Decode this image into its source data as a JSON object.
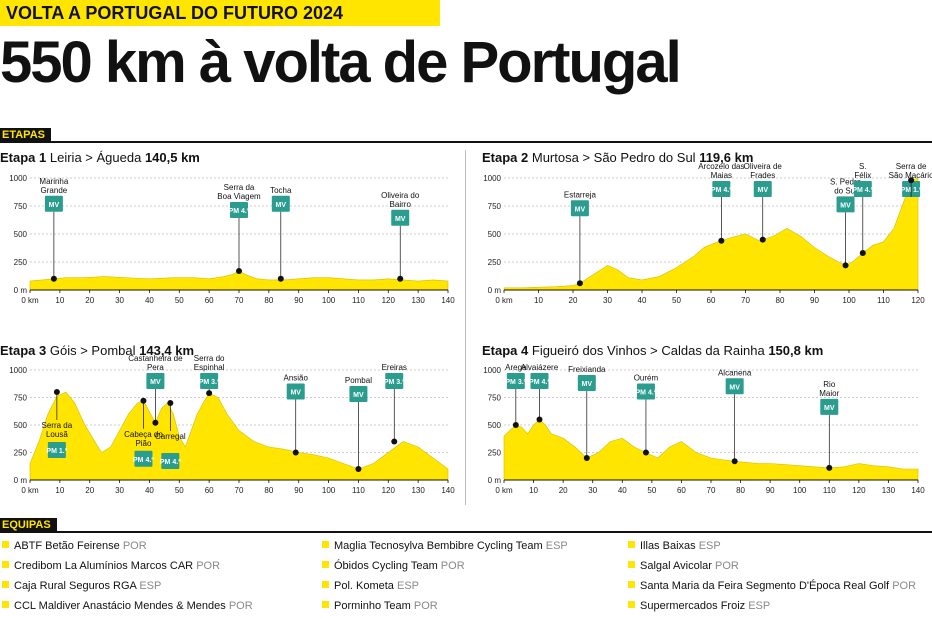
{
  "header": {
    "kicker": "VOLTA A PORTUGAL DO FUTURO 2024",
    "headline": "550 km à volta de Portugal"
  },
  "sections": {
    "stages_label": "ETAPAS",
    "teams_label": "EQUIPAS"
  },
  "chart_data": [
    {
      "type": "area",
      "title_prefix": "Etapa 1",
      "route": "Leiria > Águeda",
      "distance": "140,5 km",
      "xlim": [
        0,
        140
      ],
      "ylim": [
        0,
        1000
      ],
      "xticks": [
        0,
        10,
        20,
        30,
        40,
        50,
        60,
        70,
        80,
        90,
        100,
        110,
        120,
        130,
        140
      ],
      "xtick_labels": [
        "0 km",
        "10",
        "20",
        "30",
        "40",
        "50",
        "60",
        "70",
        "80",
        "90",
        "100",
        "110",
        "120",
        "130",
        "140"
      ],
      "yticks": [
        0,
        250,
        500,
        750,
        1000
      ],
      "ytick_labels": [
        "0 m",
        "250",
        "500",
        "750",
        "1000"
      ],
      "profile": {
        "x": [
          0,
          4,
          8,
          12,
          18,
          25,
          32,
          40,
          48,
          55,
          60,
          65,
          68,
          70,
          72,
          76,
          80,
          85,
          90,
          95,
          100,
          105,
          110,
          115,
          120,
          125,
          130,
          135,
          140
        ],
        "y": [
          80,
          90,
          100,
          110,
          110,
          120,
          110,
          100,
          110,
          110,
          100,
          120,
          140,
          170,
          140,
          100,
          90,
          90,
          100,
          110,
          110,
          100,
          90,
          90,
          100,
          90,
          80,
          90,
          80
        ]
      },
      "markers": [
        {
          "label": "Marinha Grande",
          "badge": "MV",
          "x": 8,
          "y": 100,
          "label_above": true
        },
        {
          "label": "Serra da Boa Viagem",
          "badge": "PM 4.ª",
          "x": 70,
          "y": 170,
          "label_above": true
        },
        {
          "label": "Tocha",
          "badge": "MV",
          "x": 84,
          "y": 100,
          "label_above": true
        },
        {
          "label": "Oliveira do Bairro",
          "badge": "MV",
          "x": 124,
          "y": 100,
          "label_above": true
        }
      ]
    },
    {
      "type": "area",
      "title_prefix": "Etapa 2",
      "route": "Murtosa > São Pedro do Sul",
      "distance": "119,6 km",
      "xlim": [
        0,
        120
      ],
      "ylim": [
        0,
        1000
      ],
      "xticks": [
        0,
        10,
        20,
        30,
        40,
        50,
        60,
        70,
        80,
        90,
        100,
        110,
        120
      ],
      "xtick_labels": [
        "0 km",
        "10",
        "20",
        "30",
        "40",
        "50",
        "60",
        "70",
        "80",
        "90",
        "100",
        "110",
        "120"
      ],
      "yticks": [
        0,
        250,
        500,
        750,
        1000
      ],
      "ytick_labels": [
        "0 m",
        "250",
        "500",
        "750",
        "1000"
      ],
      "profile": {
        "x": [
          0,
          5,
          10,
          15,
          20,
          22,
          25,
          28,
          30,
          33,
          36,
          40,
          45,
          50,
          55,
          58,
          62,
          66,
          70,
          74,
          78,
          82,
          86,
          90,
          94,
          97,
          99,
          101,
          104,
          107,
          110,
          113,
          116,
          118,
          120
        ],
        "y": [
          20,
          20,
          25,
          30,
          40,
          60,
          120,
          180,
          220,
          180,
          110,
          90,
          120,
          200,
          300,
          380,
          430,
          470,
          500,
          440,
          480,
          550,
          480,
          380,
          300,
          250,
          220,
          250,
          330,
          400,
          430,
          550,
          800,
          980,
          1000
        ]
      },
      "markers": [
        {
          "label": "Estarreja",
          "badge": "MV",
          "x": 22,
          "y": 60,
          "label_above": true
        },
        {
          "label": "Arcozelo das Maias",
          "badge": "PM 4.ª",
          "x": 63,
          "y": 440,
          "label_above": true
        },
        {
          "label": "Oliveira de Frades",
          "badge": "MV",
          "x": 75,
          "y": 450,
          "label_above": true
        },
        {
          "label": "S. Pedro do Sul",
          "badge": "MV",
          "x": 99,
          "y": 220,
          "label_above": true
        },
        {
          "label": "S. Félix",
          "badge": "PM 4.ª",
          "x": 104,
          "y": 330,
          "label_above": true
        },
        {
          "label": "Serra de São Macário",
          "badge": "PM 1.ª",
          "x": 118,
          "y": 980,
          "label_above": true
        }
      ]
    },
    {
      "type": "area",
      "title_prefix": "Etapa 3",
      "route": "Góis > Pombal",
      "distance": "143,4 km",
      "xlim": [
        0,
        140
      ],
      "ylim": [
        0,
        1000
      ],
      "xticks": [
        0,
        10,
        20,
        30,
        40,
        50,
        60,
        70,
        80,
        90,
        100,
        110,
        120,
        130,
        140
      ],
      "xtick_labels": [
        "0 km",
        "10",
        "20",
        "30",
        "40",
        "50",
        "60",
        "70",
        "80",
        "90",
        "100",
        "110",
        "120",
        "130",
        "140"
      ],
      "yticks": [
        0,
        250,
        500,
        750,
        1000
      ],
      "ytick_labels": [
        "0 m",
        "250",
        "500",
        "750",
        "1000"
      ],
      "profile": {
        "x": [
          0,
          3,
          6,
          9,
          12,
          15,
          18,
          21,
          24,
          27,
          30,
          33,
          36,
          38,
          40,
          42,
          44,
          46,
          48,
          50,
          52,
          54,
          56,
          58,
          60,
          63,
          66,
          70,
          75,
          80,
          85,
          90,
          95,
          100,
          105,
          110,
          115,
          120,
          125,
          130,
          135,
          140
        ],
        "y": [
          150,
          350,
          600,
          760,
          800,
          700,
          520,
          380,
          250,
          300,
          450,
          600,
          700,
          720,
          620,
          520,
          650,
          700,
          600,
          400,
          300,
          450,
          600,
          700,
          790,
          750,
          600,
          450,
          350,
          300,
          280,
          250,
          230,
          200,
          150,
          100,
          150,
          250,
          350,
          300,
          200,
          100
        ]
      },
      "markers": [
        {
          "label": "Serra da Lousã",
          "badge": "PM 1.ª",
          "x": 9,
          "y": 800,
          "label_above": false
        },
        {
          "label": "Castanheira de Pera",
          "badge": "MV",
          "x": 42,
          "y": 520,
          "label_above": true
        },
        {
          "label": "Cabeça do Pião",
          "badge": "PM 4.ª",
          "x": 38,
          "y": 720,
          "label_above": false
        },
        {
          "label": "Carregal",
          "badge": "PM 4.ª",
          "x": 47,
          "y": 700,
          "label_above": false
        },
        {
          "label": "Serra do Espinhal",
          "badge": "PM 3.ª",
          "x": 60,
          "y": 790,
          "label_above": true
        },
        {
          "label": "Ansião",
          "badge": "MV",
          "x": 89,
          "y": 250,
          "label_above": true
        },
        {
          "label": "Pombal",
          "badge": "MV",
          "x": 110,
          "y": 100,
          "label_above": true
        },
        {
          "label": "Ereiras",
          "badge": "PM 3.ª",
          "x": 122,
          "y": 350,
          "label_above": true
        }
      ]
    },
    {
      "type": "area",
      "title_prefix": "Etapa 4",
      "route": "Figueiró dos Vinhos > Caldas da Rainha",
      "distance": "150,8 km",
      "xlim": [
        0,
        140
      ],
      "ylim": [
        0,
        1000
      ],
      "xticks": [
        0,
        10,
        20,
        30,
        40,
        50,
        60,
        70,
        80,
        90,
        100,
        110,
        120,
        130,
        140
      ],
      "xtick_labels": [
        "0 km",
        "10",
        "20",
        "30",
        "40",
        "50",
        "60",
        "70",
        "80",
        "90",
        "100",
        "110",
        "120",
        "130",
        "140"
      ],
      "yticks": [
        0,
        250,
        500,
        750,
        1000
      ],
      "ytick_labels": [
        "0 m",
        "250",
        "500",
        "750",
        "1000"
      ],
      "profile": {
        "x": [
          0,
          2,
          4,
          6,
          8,
          10,
          12,
          14,
          16,
          20,
          24,
          28,
          32,
          36,
          40,
          44,
          48,
          52,
          56,
          60,
          65,
          70,
          75,
          78,
          82,
          86,
          90,
          95,
          100,
          105,
          110,
          115,
          120,
          125,
          130,
          135,
          140
        ],
        "y": [
          400,
          450,
          500,
          480,
          420,
          500,
          550,
          500,
          420,
          380,
          300,
          200,
          250,
          350,
          380,
          300,
          250,
          200,
          300,
          350,
          250,
          200,
          180,
          170,
          160,
          150,
          150,
          140,
          130,
          120,
          110,
          120,
          150,
          130,
          120,
          100,
          100
        ]
      },
      "markers": [
        {
          "label": "Arega",
          "badge": "PM 3.ª",
          "x": 4,
          "y": 500,
          "label_above": true
        },
        {
          "label": "Alvaiázere",
          "badge": "PM 4.ª",
          "x": 12,
          "y": 550,
          "label_above": true
        },
        {
          "label": "Freixianda",
          "badge": "MV",
          "x": 28,
          "y": 200,
          "label_above": true
        },
        {
          "label": "Ourém",
          "badge": "PM 4.ª",
          "x": 48,
          "y": 250,
          "label_above": true
        },
        {
          "label": "Alcanena",
          "badge": "MV",
          "x": 78,
          "y": 170,
          "label_above": true
        },
        {
          "label": "Rio Maior",
          "badge": "MV",
          "x": 110,
          "y": 110,
          "label_above": true
        }
      ]
    }
  ],
  "teams": [
    {
      "name": "ABTF Betão Feirense",
      "country": "POR"
    },
    {
      "name": "Credibom La Alumínios Marcos CAR",
      "country": "POR"
    },
    {
      "name": "Caja Rural Seguros RGA",
      "country": "ESP"
    },
    {
      "name": "CCL Maldiver Anastácio Mendes & Mendes",
      "country": "POR"
    },
    {
      "name": "Maglia Tecnosylva Bembibre Cycling Team",
      "country": "ESP"
    },
    {
      "name": "Óbidos Cycling Team",
      "country": "POR"
    },
    {
      "name": "Pol. Kometa",
      "country": "ESP"
    },
    {
      "name": "Porminho Team",
      "country": "POR"
    },
    {
      "name": "Illas Baixas",
      "country": "ESP"
    },
    {
      "name": "Salgal Avicolar",
      "country": "POR"
    },
    {
      "name": "Santa Maria da Feira Segmento D'Época Real Golf",
      "country": "POR"
    },
    {
      "name": "Supermercados Froiz",
      "country": "ESP"
    }
  ],
  "colors": {
    "accent": "#ffe500",
    "badge": "#2a9d8f",
    "ink": "#111111"
  }
}
